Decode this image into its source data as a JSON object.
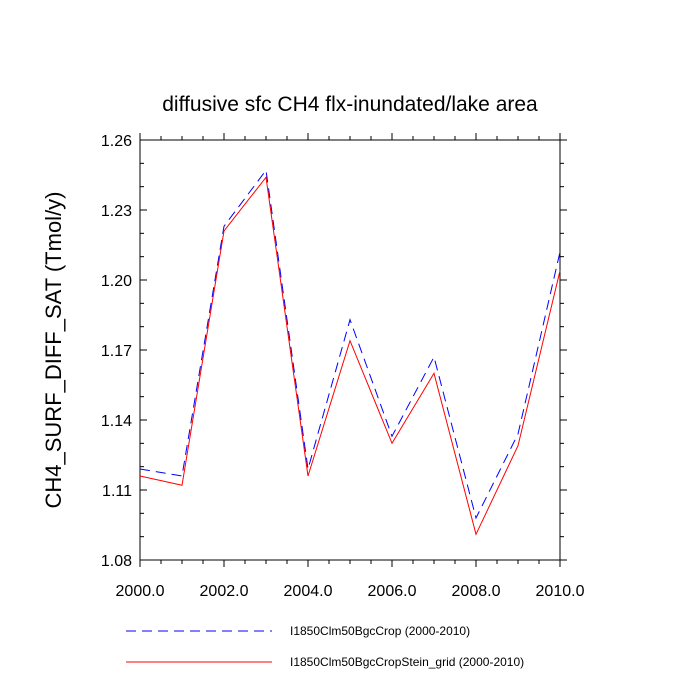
{
  "chart_data": {
    "type": "line",
    "title": "diffusive sfc CH4 flx-inundated/lake area",
    "xlabel": "",
    "ylabel": "CH4_SURF_DIFF_SAT  (Tmol/y)",
    "xlim": [
      2000,
      2010
    ],
    "ylim": [
      1.08,
      1.26
    ],
    "xticks": [
      2000,
      2002,
      2004,
      2006,
      2008,
      2010
    ],
    "xtick_labels": [
      "2000.0",
      "2002.0",
      "2004.0",
      "2006.0",
      "2008.0",
      "2010.0"
    ],
    "yticks": [
      1.08,
      1.11,
      1.14,
      1.17,
      1.2,
      1.23,
      1.26
    ],
    "ytick_labels": [
      "1.08",
      "1.11",
      "1.14",
      "1.17",
      "1.20",
      "1.23",
      "1.26"
    ],
    "x": [
      2000,
      2001,
      2002,
      2003,
      2004,
      2005,
      2006,
      2007,
      2008,
      2009,
      2010
    ],
    "series": [
      {
        "name": "I1850Clm50BgcCrop (2000-2010)",
        "color": "#0000ff",
        "dash": "dashed",
        "values": [
          1.119,
          1.116,
          1.223,
          1.247,
          1.119,
          1.183,
          1.133,
          1.167,
          1.098,
          1.134,
          1.212
        ]
      },
      {
        "name": "I1850Clm50BgcCropStein_grid (2000-2010)",
        "color": "#ff0000",
        "dash": "solid",
        "values": [
          1.116,
          1.112,
          1.221,
          1.244,
          1.116,
          1.174,
          1.13,
          1.16,
          1.091,
          1.129,
          1.204
        ]
      }
    ],
    "grid": false,
    "legend_position": "bottom"
  }
}
